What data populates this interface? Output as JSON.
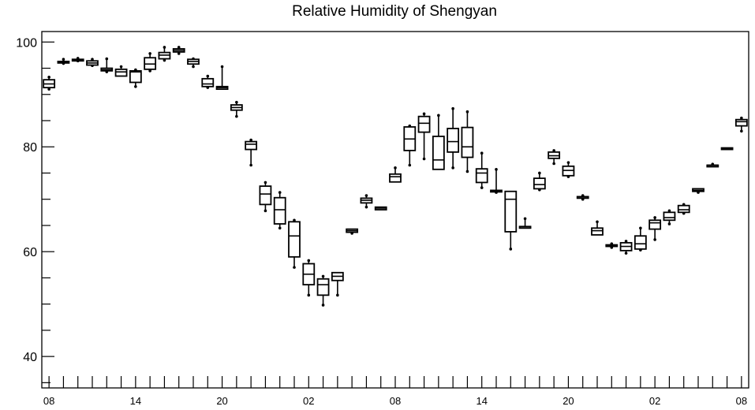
{
  "chart_data": {
    "type": "box",
    "title": "Relative Humidity of Shengyan",
    "xlabel": "",
    "ylabel": "",
    "ylim": [
      34,
      102
    ],
    "yticks": [
      40,
      60,
      80,
      100
    ],
    "x_tick_labels": [
      "08",
      "14",
      "20",
      "02",
      "08",
      "14",
      "20",
      "02",
      "08"
    ],
    "x_tick_label_positions": [
      0,
      6,
      12,
      18,
      24,
      30,
      36,
      42,
      48
    ],
    "x_range": [
      -0.5,
      48.5
    ],
    "grid": false,
    "box_color": "#000000",
    "boxes": [
      {
        "x": 0,
        "min": 91.0,
        "q1": 91.3,
        "median": 92.0,
        "q3": 92.8,
        "max": 93.3
      },
      {
        "x": 1,
        "min": 95.9,
        "q1": 96.0,
        "median": 96.1,
        "q3": 96.3,
        "max": 96.7
      },
      {
        "x": 2,
        "min": 96.4,
        "q1": 96.5,
        "median": 96.6,
        "q3": 96.7,
        "max": 96.9
      },
      {
        "x": 3,
        "min": 95.5,
        "q1": 95.6,
        "median": 96.0,
        "q3": 96.4,
        "max": 96.7
      },
      {
        "x": 4,
        "min": 94.3,
        "q1": 94.5,
        "median": 94.7,
        "q3": 95.0,
        "max": 96.8
      },
      {
        "x": 5,
        "min": 93.5,
        "q1": 93.5,
        "median": 94.3,
        "q3": 94.8,
        "max": 95.3
      },
      {
        "x": 6,
        "min": 91.5,
        "q1": 92.3,
        "median": 94.3,
        "q3": 94.5,
        "max": 94.7
      },
      {
        "x": 7,
        "min": 94.5,
        "q1": 94.8,
        "median": 95.8,
        "q3": 97.0,
        "max": 97.8
      },
      {
        "x": 8,
        "min": 96.5,
        "q1": 96.8,
        "median": 97.5,
        "q3": 98.0,
        "max": 99.0
      },
      {
        "x": 9,
        "min": 97.8,
        "q1": 98.1,
        "median": 98.4,
        "q3": 98.7,
        "max": 99.0
      },
      {
        "x": 10,
        "min": 95.3,
        "q1": 95.8,
        "median": 96.3,
        "q3": 96.7,
        "max": 96.8
      },
      {
        "x": 11,
        "min": 91.3,
        "q1": 91.5,
        "median": 92.0,
        "q3": 93.0,
        "max": 93.5
      },
      {
        "x": 12,
        "min": 91.0,
        "q1": 91.0,
        "median": 91.3,
        "q3": 91.5,
        "max": 95.3
      },
      {
        "x": 13,
        "min": 85.8,
        "q1": 87.0,
        "median": 87.5,
        "q3": 88.0,
        "max": 88.5
      },
      {
        "x": 14,
        "min": 76.5,
        "q1": 79.5,
        "median": 80.5,
        "q3": 81.0,
        "max": 81.3
      },
      {
        "x": 15,
        "min": 67.8,
        "q1": 69.0,
        "median": 71.0,
        "q3": 72.5,
        "max": 73.2
      },
      {
        "x": 16,
        "min": 64.5,
        "q1": 65.3,
        "median": 68.0,
        "q3": 70.3,
        "max": 71.3
      },
      {
        "x": 17,
        "min": 57.0,
        "q1": 59.0,
        "median": 63.0,
        "q3": 65.7,
        "max": 66.0
      },
      {
        "x": 18,
        "min": 51.7,
        "q1": 53.7,
        "median": 55.7,
        "q3": 57.7,
        "max": 58.3
      },
      {
        "x": 19,
        "min": 49.8,
        "q1": 51.7,
        "median": 53.7,
        "q3": 54.8,
        "max": 55.3
      },
      {
        "x": 20,
        "min": 51.7,
        "q1": 54.5,
        "median": 55.3,
        "q3": 56.0,
        "max": 56.0
      },
      {
        "x": 21,
        "min": 63.5,
        "q1": 63.7,
        "median": 64.0,
        "q3": 64.3,
        "max": 64.3
      },
      {
        "x": 22,
        "min": 68.5,
        "q1": 69.3,
        "median": 69.8,
        "q3": 70.2,
        "max": 70.7
      },
      {
        "x": 23,
        "min": 68.0,
        "q1": 68.0,
        "median": 68.3,
        "q3": 68.5,
        "max": 68.5
      },
      {
        "x": 24,
        "min": 73.3,
        "q1": 73.3,
        "median": 74.3,
        "q3": 74.8,
        "max": 76.0
      },
      {
        "x": 25,
        "min": 76.5,
        "q1": 79.3,
        "median": 81.5,
        "q3": 83.8,
        "max": 84.0
      },
      {
        "x": 26,
        "min": 77.7,
        "q1": 82.8,
        "median": 84.5,
        "q3": 85.8,
        "max": 86.3
      },
      {
        "x": 27,
        "min": 75.7,
        "q1": 75.7,
        "median": 77.5,
        "q3": 82.0,
        "max": 86.0
      },
      {
        "x": 28,
        "min": 76.0,
        "q1": 79.0,
        "median": 81.0,
        "q3": 83.5,
        "max": 87.3
      },
      {
        "x": 29,
        "min": 75.3,
        "q1": 78.0,
        "median": 80.0,
        "q3": 83.7,
        "max": 86.7
      },
      {
        "x": 30,
        "min": 72.2,
        "q1": 73.2,
        "median": 75.0,
        "q3": 75.8,
        "max": 78.8
      },
      {
        "x": 31,
        "min": 71.3,
        "q1": 71.5,
        "median": 71.5,
        "q3": 71.7,
        "max": 75.7
      },
      {
        "x": 32,
        "min": 60.5,
        "q1": 63.8,
        "median": 70.0,
        "q3": 71.5,
        "max": 71.5
      },
      {
        "x": 33,
        "min": 64.5,
        "q1": 64.5,
        "median": 64.5,
        "q3": 64.8,
        "max": 66.3
      },
      {
        "x": 34,
        "min": 71.8,
        "q1": 72.0,
        "median": 72.8,
        "q3": 74.0,
        "max": 75.0
      },
      {
        "x": 35,
        "min": 76.8,
        "q1": 77.8,
        "median": 78.3,
        "q3": 79.0,
        "max": 79.3
      },
      {
        "x": 36,
        "min": 74.3,
        "q1": 74.5,
        "median": 75.5,
        "q3": 76.3,
        "max": 77.0
      },
      {
        "x": 37,
        "min": 70.0,
        "q1": 70.3,
        "median": 70.5,
        "q3": 70.5,
        "max": 70.7
      },
      {
        "x": 38,
        "min": 63.2,
        "q1": 63.2,
        "median": 64.0,
        "q3": 64.5,
        "max": 65.7
      },
      {
        "x": 39,
        "min": 60.8,
        "q1": 61.0,
        "median": 61.2,
        "q3": 61.3,
        "max": 61.5
      },
      {
        "x": 40,
        "min": 59.7,
        "q1": 60.2,
        "median": 61.0,
        "q3": 61.7,
        "max": 62.0
      },
      {
        "x": 41,
        "min": 60.3,
        "q1": 60.5,
        "median": 61.5,
        "q3": 63.0,
        "max": 64.5
      },
      {
        "x": 42,
        "min": 62.3,
        "q1": 64.3,
        "median": 65.5,
        "q3": 66.0,
        "max": 66.5
      },
      {
        "x": 43,
        "min": 65.3,
        "q1": 66.0,
        "median": 66.5,
        "q3": 67.5,
        "max": 67.8
      },
      {
        "x": 44,
        "min": 67.3,
        "q1": 67.5,
        "median": 68.0,
        "q3": 68.8,
        "max": 69.0
      },
      {
        "x": 45,
        "min": 71.3,
        "q1": 71.5,
        "median": 71.7,
        "q3": 72.0,
        "max": 72.0
      },
      {
        "x": 46,
        "min": 76.3,
        "q1": 76.3,
        "median": 76.5,
        "q3": 76.5,
        "max": 76.7
      },
      {
        "x": 47,
        "min": 79.5,
        "q1": 79.5,
        "median": 79.6,
        "q3": 79.8,
        "max": 79.8
      },
      {
        "x": 48,
        "min": 83.0,
        "q1": 84.0,
        "median": 84.8,
        "q3": 85.2,
        "max": 85.5
      }
    ]
  }
}
